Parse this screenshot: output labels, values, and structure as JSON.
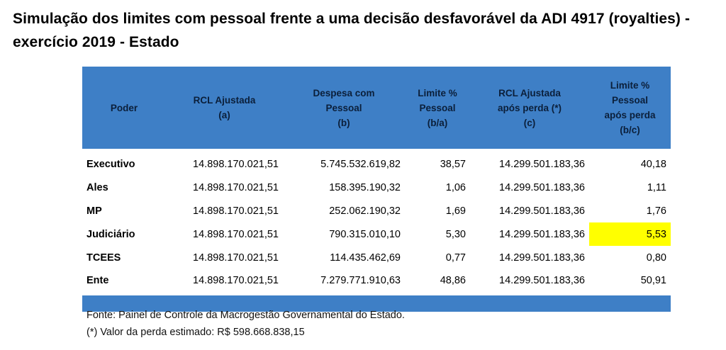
{
  "title": "Simulação dos limites com pessoal frente a uma decisão desfavorável da ADI 4917 (royalties) - exercício 2019 - Estado",
  "table": {
    "headers": [
      "Poder",
      "RCL Ajustada\n(a)",
      "Despesa com\nPessoal\n(b)",
      "Limite %\nPessoal\n(b/a)",
      "RCL Ajustada\napós perda (*)\n(c)",
      "Limite %\nPessoal\napós perda\n(b/c)"
    ],
    "rows": [
      [
        "Executivo",
        "14.898.170.021,51",
        "5.745.532.619,82",
        "38,57",
        "14.299.501.183,36",
        "40,18"
      ],
      [
        "Ales",
        "14.898.170.021,51",
        "158.395.190,32",
        "1,06",
        "14.299.501.183,36",
        "1,11"
      ],
      [
        "MP",
        "14.898.170.021,51",
        "252.062.190,32",
        "1,69",
        "14.299.501.183,36",
        "1,76"
      ],
      [
        "Judiciário",
        "14.898.170.021,51",
        "790.315.010,10",
        "5,30",
        "14.299.501.183,36",
        "5,53"
      ],
      [
        "TCEES",
        "14.898.170.021,51",
        "114.435.462,69",
        "0,77",
        "14.299.501.183,36",
        "0,80"
      ],
      [
        "Ente",
        "14.898.170.021,51",
        "7.279.771.910,63",
        "48,86",
        "14.299.501.183,36",
        "50,91"
      ]
    ],
    "header_color": "#3e7fc6",
    "highlight_color": "#ffff00"
  },
  "notes": {
    "source": "Fonte: Painel de Controle da Macrogestão Governamental do Estado.",
    "footnote": "(*) Valor da perda estimado: R$ 598.668.838,15"
  }
}
